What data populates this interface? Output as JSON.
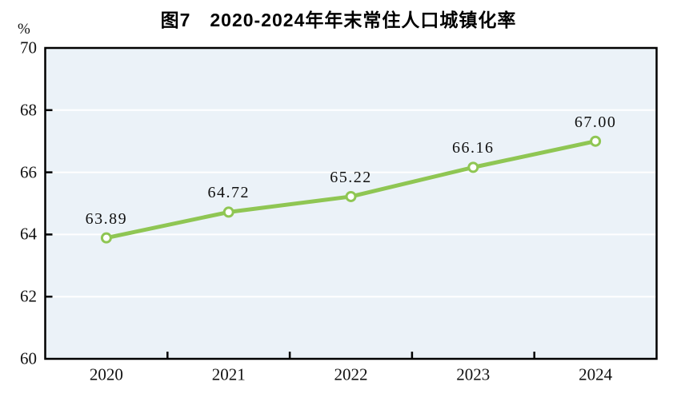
{
  "title": "图7　2020-2024年年末常住人口城镇化率",
  "unit_label": "%",
  "colors": {
    "line": "#8fc653",
    "marker_fill": "#ffffff",
    "plot_bg": "#ebf2f8",
    "gridline": "#ffffff",
    "axis": "#000000",
    "text": "#111111"
  },
  "chart_data": {
    "type": "line",
    "title": "图7　2020-2024年年末常住人口城镇化率",
    "categories": [
      "2020",
      "2021",
      "2022",
      "2023",
      "2024"
    ],
    "values": [
      63.89,
      64.72,
      65.22,
      66.16,
      67.0
    ],
    "point_labels": [
      "63.89",
      "64.72",
      "65.22",
      "66.16",
      "67.00"
    ],
    "xlabel": "",
    "ylabel": "%",
    "ylim": [
      60,
      70
    ],
    "yticks": [
      60,
      62,
      64,
      66,
      68,
      70
    ],
    "grid": true,
    "legend": "none",
    "marker": "open-circle"
  }
}
